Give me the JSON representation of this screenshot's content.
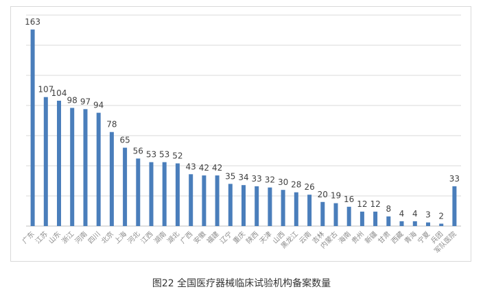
{
  "figure_caption": "图22   全国医疗器械临床试验机构备案数量",
  "colors": {
    "bar": "#4a7ebb",
    "grid": "#d9d9d9",
    "axis": "#bfbfbf",
    "label": "#404040",
    "tick": "#8c8c8c"
  },
  "chart_data": {
    "type": "bar",
    "title": "",
    "xlabel": "",
    "ylabel": "",
    "ylim": [
      0,
      175
    ],
    "grid": true,
    "legend": "none",
    "categories": [
      "广东",
      "江苏",
      "山东",
      "浙江",
      "河南",
      "四川",
      "北京",
      "上海",
      "河北",
      "江西",
      "湖南",
      "湖北",
      "广西",
      "安徽",
      "福建",
      "辽宁",
      "重庆",
      "陕西",
      "天津",
      "山西",
      "黑龙江",
      "云南",
      "吉林",
      "内蒙古",
      "海南",
      "贵州",
      "新疆",
      "甘肃",
      "西藏",
      "青海",
      "宁夏",
      "兵团",
      "军队医院"
    ],
    "values": [
      163,
      107,
      104,
      98,
      97,
      94,
      78,
      65,
      56,
      53,
      53,
      52,
      43,
      42,
      42,
      35,
      34,
      33,
      32,
      30,
      28,
      26,
      20,
      19,
      16,
      12,
      12,
      8,
      4,
      4,
      3,
      2,
      33
    ]
  }
}
